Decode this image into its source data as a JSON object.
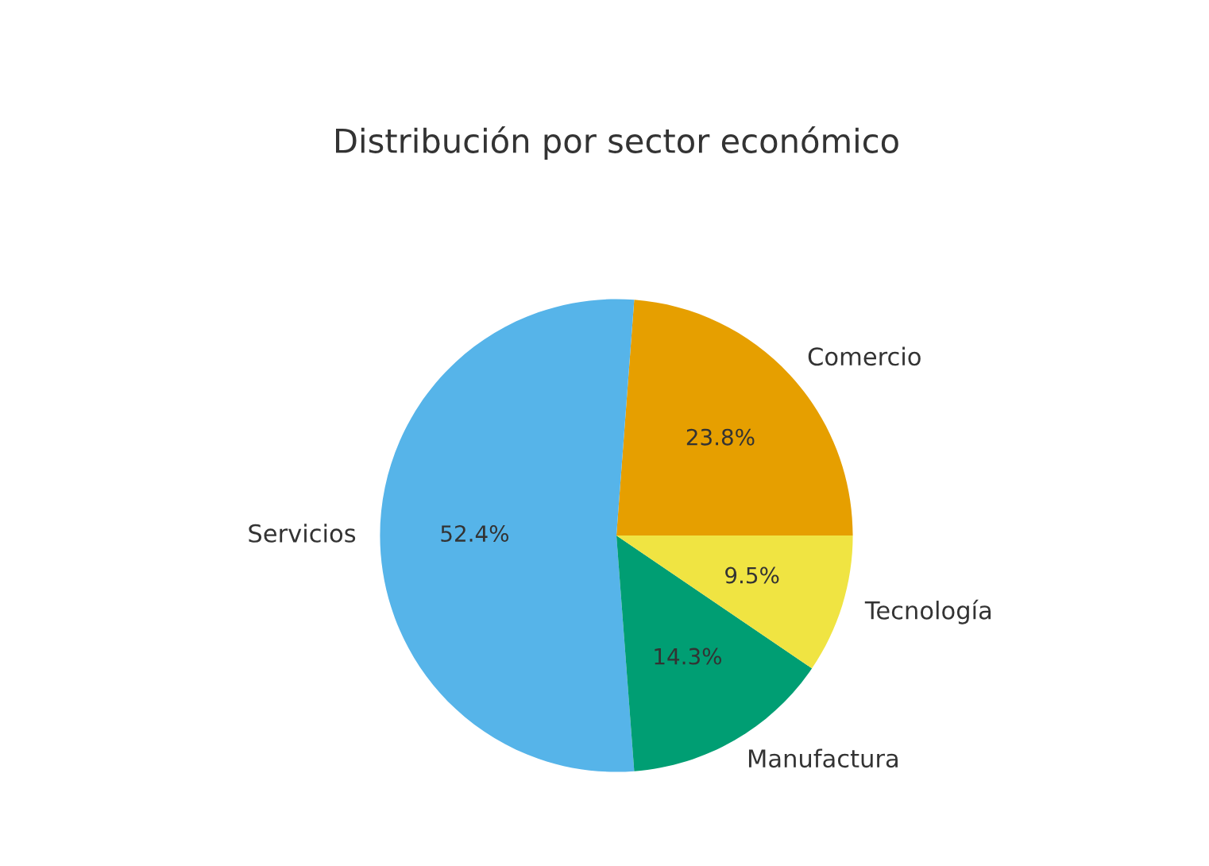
{
  "chart_data": {
    "type": "pie",
    "title": "Distribución por sector económico",
    "categories": [
      "Comercio",
      "Servicios",
      "Manufactura",
      "Tecnología"
    ],
    "values": [
      23.8,
      52.4,
      14.3,
      9.5
    ],
    "colors": [
      "#e69f00",
      "#56b4e9",
      "#009e73",
      "#f0e442"
    ],
    "value_labels": [
      "23.8%",
      "52.4%",
      "14.3%",
      "9.5%"
    ]
  }
}
